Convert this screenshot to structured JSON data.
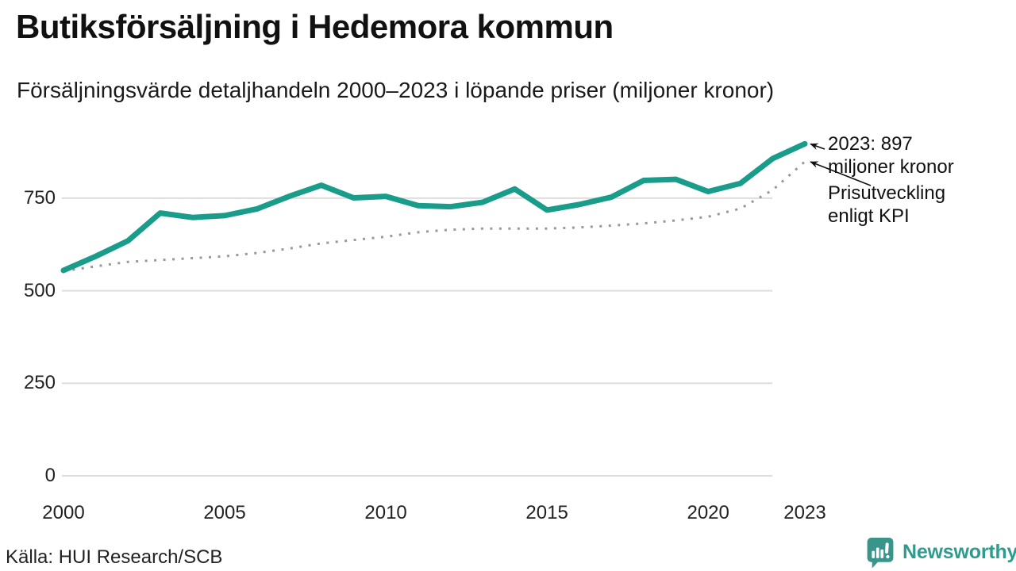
{
  "title": "Butiksförsäljning i Hedemora kommun",
  "subtitle": "Försäljningsvärde detaljhandeln 2000–2023 i löpande priser (miljoner kronor)",
  "source": "Källa: HUI Research/SCB",
  "brand": {
    "name": "Newsworthy",
    "icon": "bar-chart-speech-bubble-icon",
    "color": "#2d9c8e",
    "icon_color": "#39958a"
  },
  "annotations": {
    "latest": {
      "line1": "2023: 897",
      "line2": "miljoner kronor"
    },
    "kpi": {
      "line1": "Prisutveckling",
      "line2": "enligt KPI"
    }
  },
  "chart_data": {
    "type": "line",
    "title": "Butiksförsäljning i Hedemora kommun",
    "subtitle": "Försäljningsvärde detaljhandeln 2000–2023 i löpande priser (miljoner kronor)",
    "x": [
      2000,
      2001,
      2002,
      2003,
      2004,
      2005,
      2006,
      2007,
      2008,
      2009,
      2010,
      2011,
      2012,
      2013,
      2014,
      2015,
      2016,
      2017,
      2018,
      2019,
      2020,
      2021,
      2022,
      2023
    ],
    "series": [
      {
        "name": "Försäljningsvärde i löpande priser (miljoner kronor)",
        "style": "solid",
        "color": "#1a9c8b",
        "values": [
          555,
          593,
          635,
          710,
          698,
          703,
          721,
          755,
          785,
          751,
          755,
          730,
          727,
          739,
          775,
          718,
          733,
          753,
          798,
          801,
          768,
          790,
          857,
          897
        ]
      },
      {
        "name": "Prisutveckling enligt KPI",
        "style": "dotted",
        "color": "#999999",
        "values": [
          553,
          566,
          578,
          583,
          588,
          593,
          602,
          614,
          628,
          637,
          646,
          658,
          665,
          668,
          668,
          668,
          671,
          676,
          682,
          690,
          700,
          722,
          772,
          849
        ]
      }
    ],
    "latest_point": {
      "year": 2023,
      "value": 897,
      "label": "2023: 897 miljoner kronor"
    },
    "yticks": [
      0,
      250,
      500,
      750
    ],
    "xticks": [
      2000,
      2005,
      2010,
      2015,
      2020,
      2023
    ],
    "ylim": [
      0,
      940
    ],
    "xlim": [
      2000,
      2023
    ],
    "grid": "horizontal",
    "grid_color": "#dddddd",
    "legend": "annotated-arrows"
  }
}
